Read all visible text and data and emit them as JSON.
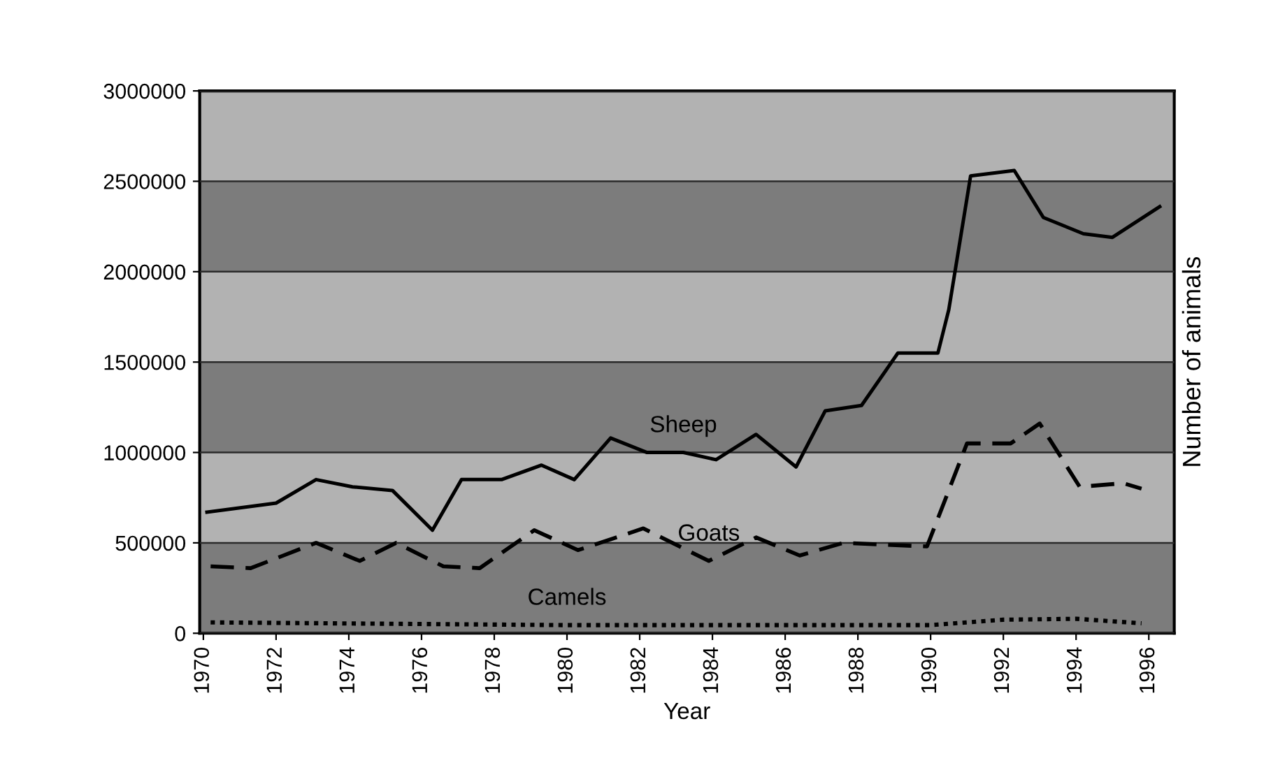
{
  "chart_data": {
    "type": "line",
    "xlabel": "Year",
    "ylabel": "Number of animals",
    "xlim": [
      1969.9,
      1996.7
    ],
    "xticks": [
      1970,
      1972,
      1974,
      1976,
      1978,
      1980,
      1982,
      1984,
      1986,
      1988,
      1990,
      1992,
      1994,
      1996
    ],
    "ylim": [
      0,
      3000000
    ],
    "yticks": [
      0,
      500000,
      1000000,
      1500000,
      2000000,
      2500000,
      3000000
    ],
    "grid": "y",
    "legend": false,
    "marker": "none",
    "bands": [
      {
        "axis": "y",
        "from": 0,
        "to": 500000,
        "color": "#7c7c7c"
      },
      {
        "axis": "y",
        "from": 500000,
        "to": 1000000,
        "color": "#b2b2b2"
      },
      {
        "axis": "y",
        "from": 1000000,
        "to": 1500000,
        "color": "#7c7c7c"
      },
      {
        "axis": "y",
        "from": 1500000,
        "to": 2000000,
        "color": "#b2b2b2"
      },
      {
        "axis": "y",
        "from": 2000000,
        "to": 2500000,
        "color": "#7c7c7c"
      },
      {
        "axis": "y",
        "from": 2500000,
        "to": 3000000,
        "color": "#b2b2b2"
      }
    ],
    "series": [
      {
        "name": "Sheep",
        "color": "#000000",
        "line_style": "solid",
        "x": [
          1970.1,
          1972.0,
          1973.1,
          1974.1,
          1975.2,
          1976.3,
          1977.1,
          1978.2,
          1979.3,
          1980.2,
          1981.2,
          1982.2,
          1983.2,
          1984.1,
          1985.2,
          1986.3,
          1987.1,
          1988.1,
          1989.1,
          1990.2,
          1990.5,
          1991.1,
          1992.3,
          1993.1,
          1994.2,
          1995.0,
          1996.3
        ],
        "values": [
          670000,
          720000,
          850000,
          810000,
          790000,
          570000,
          850000,
          850000,
          930000,
          850000,
          1080000,
          1000000,
          1000000,
          960000,
          1100000,
          920000,
          1230000,
          1260000,
          1550000,
          1550000,
          1790000,
          2530000,
          2560000,
          2300000,
          2210000,
          2190000,
          2360000
        ]
      },
      {
        "name": "Goats",
        "color": "#000000",
        "line_style": "dashed",
        "x": [
          1970.2,
          1971.3,
          1973.1,
          1974.3,
          1975.3,
          1976.6,
          1977.6,
          1979.1,
          1980.3,
          1982.1,
          1983.9,
          1985.2,
          1986.4,
          1987.6,
          1989.9,
          1991.0,
          1992.2,
          1993.0,
          1994.1,
          1995.3,
          1995.8
        ],
        "values": [
          370000,
          360000,
          500000,
          400000,
          500000,
          370000,
          360000,
          570000,
          460000,
          580000,
          400000,
          530000,
          430000,
          500000,
          480000,
          1050000,
          1050000,
          1160000,
          810000,
          830000,
          800000
        ]
      },
      {
        "name": "Camels",
        "color": "#000000",
        "line_style": "dotted",
        "x": [
          1970.2,
          1980.0,
          1990.0,
          1992.0,
          1994.0,
          1995.8
        ],
        "values": [
          60000,
          45000,
          45000,
          75000,
          80000,
          55000
        ]
      }
    ]
  }
}
